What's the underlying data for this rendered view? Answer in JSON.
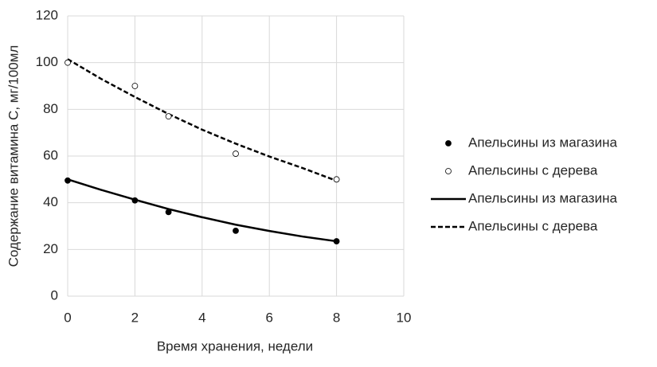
{
  "chart_data": {
    "type": "scatter",
    "xlabel": "Время хранения, недели",
    "ylabel": "Содержание витамина С, мг/100мл",
    "xlim": [
      0,
      10
    ],
    "xticks": [
      0,
      2,
      4,
      6,
      8,
      10
    ],
    "ylim": [
      0,
      120
    ],
    "yticks": [
      0,
      20,
      40,
      60,
      80,
      100,
      120
    ],
    "grid": true,
    "legend": "right",
    "series": [
      {
        "name": "Апельсины из магазина",
        "mode": "markers",
        "color": "#000000",
        "marker_fill": "#000000",
        "x": [
          0,
          2,
          3,
          5,
          8
        ],
        "values": [
          49.5,
          41,
          36,
          28,
          23.5
        ]
      },
      {
        "name": "Апельсины с дерева",
        "mode": "markers",
        "color": "#000000",
        "marker_fill": "#ffffff",
        "x": [
          0,
          2,
          3,
          5,
          8
        ],
        "values": [
          100,
          90,
          77,
          61,
          50
        ]
      },
      {
        "name": "Апельсины из магазина",
        "mode": "line",
        "color": "#000000",
        "dash": false,
        "x": [
          0,
          1,
          2,
          3,
          4,
          5,
          6,
          7,
          8
        ],
        "values": [
          50,
          45.5,
          41.3,
          37.3,
          33.8,
          30.6,
          27.9,
          25.5,
          23.5
        ]
      },
      {
        "name": "Апельсины с дерева",
        "mode": "line",
        "color": "#000000",
        "dash": true,
        "x": [
          0,
          1,
          2,
          3,
          4,
          5,
          6,
          7,
          8
        ],
        "values": [
          101.5,
          93,
          85.3,
          78,
          71.3,
          65.3,
          59.8,
          54.8,
          49.4
        ]
      }
    ]
  }
}
